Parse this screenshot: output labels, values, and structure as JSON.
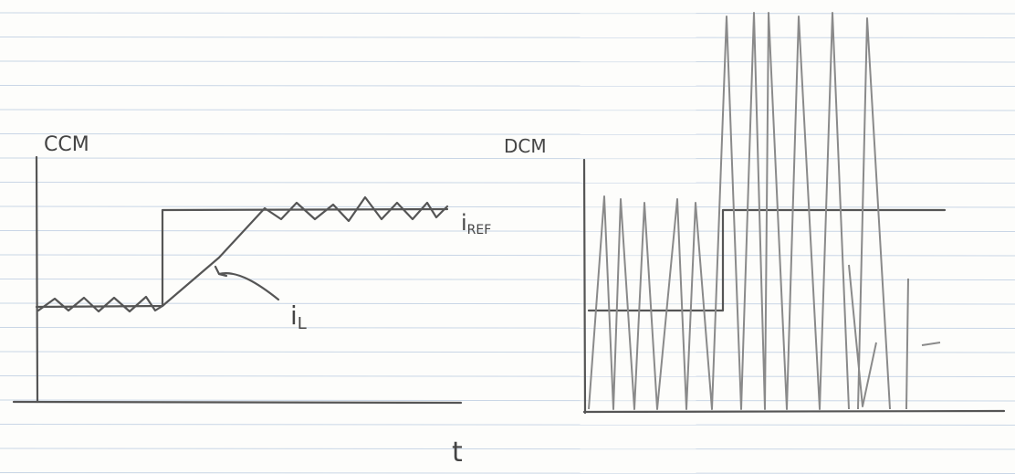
{
  "left_panel": {
    "label": "CCM",
    "reference_label": {
      "text": "i",
      "sub": "REF"
    },
    "current_label": {
      "text": "i",
      "sub": "L"
    },
    "axis_label": "t"
  },
  "right_panel": {
    "label": "DCM"
  }
}
